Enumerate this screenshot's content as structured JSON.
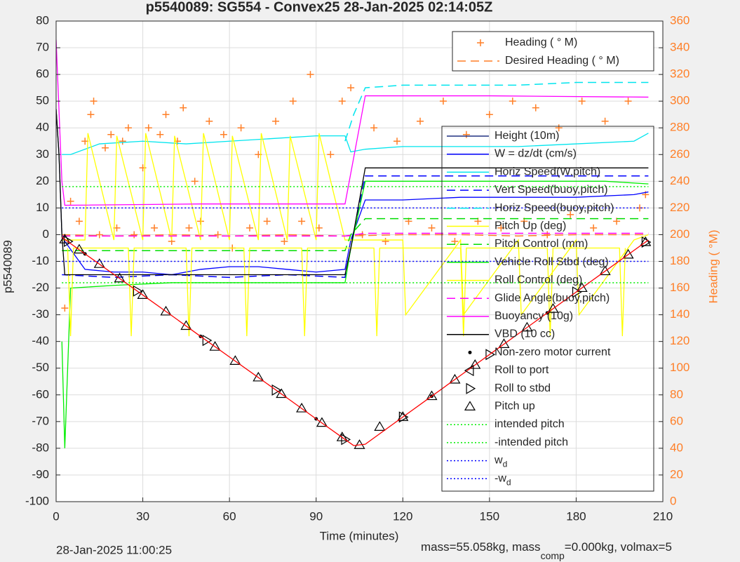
{
  "chart_data": {
    "type": "line",
    "title": "p5540089: SG554 - Convex25 28-Jan-2025 02:14:05Z",
    "x_label": "Time (minutes)",
    "y_label": "p5540089",
    "y2_label": "Heading ( °M)",
    "footer_left": "28-Jan-2025 11:00:25",
    "footer_right": "mass=55.058kg, mass",
    "footer_right_sub": "comp",
    "footer_right_end": "=0.000kg, volmax=5",
    "xlim": [
      0,
      210
    ],
    "xticks": [
      0,
      30,
      60,
      90,
      120,
      150,
      180,
      210
    ],
    "ylim": [
      -100,
      80
    ],
    "yticks": [
      -100,
      -90,
      -80,
      -70,
      -60,
      -50,
      -40,
      -30,
      -20,
      -10,
      0,
      10,
      20,
      30,
      40,
      50,
      60,
      70,
      80
    ],
    "y2lim": [
      0,
      360
    ],
    "y2ticks": [
      0,
      20,
      40,
      60,
      80,
      100,
      120,
      140,
      160,
      180,
      200,
      220,
      240,
      260,
      280,
      300,
      320,
      340,
      360
    ],
    "grid": true,
    "series": [
      {
        "name": "Heading ( ° M)",
        "axis": "y2",
        "color": "#ff7f27",
        "style": "markers",
        "marker": "plus",
        "x": [
          3,
          5,
          8,
          10,
          12,
          13,
          15,
          17,
          19,
          21,
          23,
          25,
          27,
          30,
          32,
          34,
          36,
          38,
          40,
          42,
          44,
          46,
          48,
          50,
          53,
          56,
          58,
          61,
          64,
          67,
          70,
          73,
          76,
          79,
          82,
          85,
          88,
          91,
          95,
          99,
          102,
          106,
          110,
          114,
          118,
          122,
          126,
          130,
          134,
          138,
          142,
          146,
          150,
          154,
          158,
          162,
          166,
          170,
          174,
          178,
          182,
          186,
          190,
          194,
          198,
          202,
          204
        ],
        "values": [
          145,
          225,
          210,
          270,
          290,
          300,
          200,
          265,
          275,
          205,
          270,
          280,
          200,
          250,
          280,
          205,
          275,
          290,
          195,
          270,
          295,
          205,
          240,
          210,
          285,
          200,
          275,
          190,
          280,
          205,
          260,
          210,
          285,
          195,
          300,
          210,
          320,
          205,
          260,
          300,
          310,
          200,
          280,
          195,
          270,
          210,
          285,
          205,
          300,
          195,
          275,
          210,
          290,
          205,
          300,
          210,
          295,
          200,
          280,
          215,
          300,
          205,
          285,
          210,
          300,
          220,
          230
        ]
      },
      {
        "name": "Desired Heading ( ° M)",
        "axis": "y2",
        "color": "#ff7f27",
        "style": "dashed",
        "x": [
          2,
          20,
          40,
          60,
          80,
          100,
          120,
          140,
          160,
          180,
          204
        ],
        "values": [
          200,
          199,
          200,
          199,
          200,
          199,
          200,
          200,
          199,
          200,
          200
        ]
      },
      {
        "name": "Height (10m)",
        "color": "#203080",
        "style": "solid",
        "x": [
          0,
          1,
          2
        ],
        "values": [
          47,
          30,
          0
        ]
      },
      {
        "name": "W = dz/dt (cm/s)",
        "color": "#0000ff",
        "style": "solid",
        "x": [
          2,
          10,
          20,
          30,
          40,
          50,
          60,
          70,
          80,
          90,
          100,
          102,
          107,
          120,
          140,
          160,
          180,
          200,
          205
        ],
        "values": [
          -1,
          -13,
          -14,
          -14,
          -15,
          -13,
          -12,
          -12,
          -13,
          -14,
          -13,
          -2,
          13,
          13,
          14,
          14,
          14,
          15,
          16
        ]
      },
      {
        "name": "Horiz Speed(W,pitch)",
        "color": "#00e5ee",
        "style": "solid",
        "x": [
          2,
          5,
          15,
          30,
          45,
          60,
          75,
          90,
          100,
          102,
          107,
          120,
          140,
          160,
          180,
          200,
          205
        ],
        "values": [
          30,
          30,
          34,
          35,
          34,
          35,
          36,
          37,
          37,
          31,
          32,
          33,
          33,
          33,
          34,
          35,
          38
        ]
      },
      {
        "name": "Vert Speed(buoy,pitch)",
        "color": "#0000ff",
        "style": "dashed",
        "x": [
          2,
          20,
          40,
          60,
          80,
          100,
          102,
          107,
          130,
          160,
          190,
          205
        ],
        "values": [
          -15,
          -16,
          -15,
          -16,
          -15,
          -16,
          -5,
          22,
          22,
          22,
          22,
          22
        ]
      },
      {
        "name": "Horiz Speed(buoy,pitch)",
        "color": "#00e5ee",
        "style": "dashed",
        "x": [
          100,
          103,
          107,
          120,
          140,
          160,
          180,
          200,
          205
        ],
        "values": [
          35,
          45,
          55,
          56,
          56,
          56,
          57,
          57,
          57
        ]
      },
      {
        "name": "Pitch Up (deg)",
        "color": "#ffff00",
        "style": "solid",
        "x": [
          2,
          10,
          11,
          20,
          21,
          30,
          31,
          40,
          41,
          50,
          51,
          60,
          61,
          70,
          71,
          80,
          81,
          90,
          91,
          100,
          107,
          120,
          121,
          140,
          141,
          160,
          161,
          180,
          181,
          200,
          205
        ],
        "values": [
          -2,
          -2,
          38,
          -2,
          37,
          -2,
          38,
          -2,
          37,
          -2,
          38,
          -2,
          37,
          -2,
          38,
          -2,
          37,
          -2,
          38,
          -2,
          -2,
          -2,
          -30,
          -2,
          -30,
          -2,
          -30,
          -2,
          -30,
          -2,
          0
        ]
      },
      {
        "name": "Pitch Control (mm)",
        "color": "#00dd00",
        "style": "dashed",
        "x": [
          2,
          100,
          102,
          107,
          205
        ],
        "values": [
          -6,
          -6,
          0,
          6,
          6
        ]
      },
      {
        "name": "Vehicle Roll Stbd (deg)",
        "color": "#00ee00",
        "style": "solid",
        "x": [
          2,
          3,
          5,
          20,
          40,
          60,
          80,
          100,
          102,
          107,
          130,
          160,
          190,
          205
        ],
        "values": [
          -40,
          -80,
          -20,
          -19,
          -18,
          -18,
          -18,
          -18,
          -5,
          20,
          20,
          20,
          20,
          19
        ]
      },
      {
        "name": "Roll Control (deg)",
        "color": "#ffff00",
        "style": "solid",
        "x": [
          4,
          5,
          6,
          25,
          26,
          27,
          45,
          46,
          47,
          65,
          66,
          67,
          85,
          86,
          87,
          110,
          111,
          112,
          140,
          141,
          142,
          170,
          171,
          172,
          195,
          196,
          197
        ],
        "values": [
          -5,
          -38,
          -5,
          -5,
          -38,
          -5,
          -5,
          -38,
          -5,
          -5,
          -38,
          -5,
          -5,
          -38,
          -5,
          -5,
          -38,
          -5,
          -5,
          -38,
          -5,
          -5,
          -38,
          -5,
          -5,
          -38,
          -5
        ]
      },
      {
        "name": "Glide Angle(buoy,pitch)",
        "color": "#ff00ff",
        "style": "dashed",
        "x": [
          2,
          100,
          107,
          205
        ],
        "values": [
          -0.5,
          -0.5,
          0.5,
          0.5
        ]
      },
      {
        "name": "Buoyancy (10g)",
        "color": "#ff00ff",
        "style": "solid",
        "x": [
          0,
          2,
          3,
          50,
          100,
          107,
          150,
          205
        ],
        "values": [
          73,
          20,
          11,
          11.5,
          11.5,
          52,
          52,
          51.5
        ]
      },
      {
        "name": "VBD (10 cc)",
        "color": "#000000",
        "style": "solid",
        "x": [
          0,
          1,
          2,
          3,
          100,
          102,
          107,
          205
        ],
        "values": [
          47,
          30,
          0,
          -15,
          -15,
          -5,
          25,
          25
        ]
      },
      {
        "name": "Non-zero motor current",
        "color": "#000000",
        "style": "markers",
        "marker": "dot",
        "x": [
          10,
          50,
          90,
          130,
          170
        ],
        "values": [
          -7.2,
          -38.1,
          -69.0,
          -60.5,
          -29.3
        ]
      },
      {
        "name": "Roll to port",
        "color": "#000000",
        "style": "markers",
        "marker": "left",
        "x": [],
        "values": []
      },
      {
        "name": "Roll to stbd",
        "color": "#000000",
        "style": "markers",
        "marker": "right",
        "x": [
          4,
          28,
          52,
          76,
          100,
          120,
          150,
          180,
          204
        ],
        "values": [
          -2.5,
          -21.1,
          -39.6,
          -58.2,
          -76.7,
          -68.3,
          -44.9,
          -21.5,
          -2.8
        ]
      },
      {
        "name": "Pitch up",
        "color": "#000000",
        "style": "markers",
        "marker": "up",
        "x": [
          3,
          8,
          15,
          22,
          30,
          38,
          45,
          55,
          62,
          70,
          78,
          85,
          92,
          99,
          105,
          112,
          120,
          130,
          138,
          145,
          155,
          163,
          172,
          182,
          190,
          198,
          204
        ],
        "values": [
          -1.8,
          -5.6,
          -11.0,
          -16.4,
          -22.6,
          -28.8,
          -34.2,
          -42.0,
          -47.3,
          -53.5,
          -59.7,
          -65.1,
          -70.5,
          -75.9,
          -78.8,
          -72.0,
          -68.3,
          -60.5,
          -54.3,
          -48.8,
          -41.0,
          -34.8,
          -27.8,
          -20.0,
          -13.7,
          -7.5,
          -2.8
        ]
      },
      {
        "name": "intended pitch",
        "color": "#00ee00",
        "style": "dotted",
        "x": [
          2,
          205
        ],
        "values": [
          18,
          18
        ]
      },
      {
        "name": "-intended pitch",
        "color": "#00ee00",
        "style": "dotted",
        "x": [
          2,
          205
        ],
        "values": [
          -18,
          -18
        ]
      },
      {
        "name": "w",
        "name_sub": "d",
        "color": "#0000ff",
        "style": "dotted",
        "x": [
          2,
          205
        ],
        "values": [
          10,
          10
        ]
      },
      {
        "name": "-w",
        "name_sub": "d",
        "color": "#0000ff",
        "style": "dotted",
        "x": [
          2,
          205
        ],
        "values": [
          -10,
          -10
        ]
      },
      {
        "color": "#ff0000",
        "style": "solid",
        "x": [
          2,
          10,
          20,
          30,
          40,
          50,
          60,
          70,
          80,
          90,
          100,
          103,
          107,
          120,
          130,
          140,
          150,
          160,
          170,
          180,
          190,
          200,
          205
        ],
        "values": [
          -1,
          -7.2,
          -14.9,
          -22.6,
          -30.3,
          -38.1,
          -45.8,
          -53.5,
          -61.2,
          -69.0,
          -76.7,
          -79,
          -78.5,
          -68.3,
          -60.5,
          -52.7,
          -44.9,
          -37.1,
          -29.3,
          -21.5,
          -13.7,
          -5.9,
          -2
        ]
      }
    ]
  }
}
